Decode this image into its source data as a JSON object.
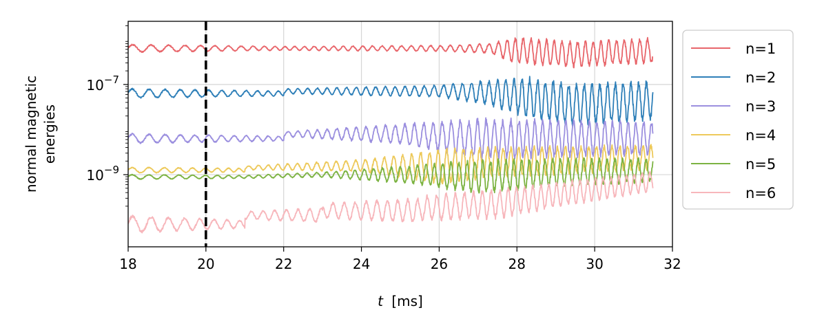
{
  "chart_data": {
    "type": "line",
    "title": "",
    "xlabel": "t",
    "xlabel_unit": "[ms]",
    "ylabel_line1": "normal magnetic",
    "ylabel_line2": "energies",
    "xlim": [
      18,
      32
    ],
    "ylim_log10": [
      -10.6,
      -5.6
    ],
    "yscale": "log",
    "grid": true,
    "x_ticks": [
      18,
      20,
      22,
      24,
      26,
      28,
      30,
      32
    ],
    "x_tick_labels": [
      "18",
      "20",
      "22",
      "24",
      "26",
      "28",
      "30",
      "32"
    ],
    "y_ticks_log10": [
      -9,
      -7
    ],
    "y_tick_labels": [
      {
        "base": "10",
        "exp": "−9"
      },
      {
        "base": "10",
        "exp": "−7"
      }
    ],
    "legend_position": "outside-right-top",
    "vline": {
      "x": 20,
      "style": "dashed",
      "color": "#000000"
    },
    "series": [
      {
        "name": "n=1",
        "color": "#e8656a",
        "segments": [
          [
            18,
            -6.2,
            -6.2,
            0.08,
            0.5
          ],
          [
            22,
            -6.2,
            -6.2,
            0.04,
            0.25
          ],
          [
            26,
            -6.2,
            -6.2,
            0.06,
            0.25
          ],
          [
            27.3,
            -6.2,
            -6.25,
            0.1,
            0.25
          ],
          [
            28,
            -6.25,
            -6.33,
            0.27,
            0.2
          ],
          [
            29.5,
            -6.33,
            -6.25,
            0.26,
            0.2
          ],
          [
            31.5,
            -6.25,
            -6.25,
            0.26,
            0.2
          ]
        ]
      },
      {
        "name": "n=2",
        "color": "#2e7fb8",
        "segments": [
          [
            18,
            -7.2,
            -7.2,
            0.1,
            0.45
          ],
          [
            22,
            -7.15,
            -7.15,
            0.05,
            0.25
          ],
          [
            26,
            -7.15,
            -7.18,
            0.12,
            0.25
          ],
          [
            27.3,
            -7.18,
            -7.3,
            0.25,
            0.22
          ],
          [
            28.3,
            -7.3,
            -7.45,
            0.42,
            0.2
          ],
          [
            29.5,
            -7.45,
            -7.35,
            0.42,
            0.2
          ],
          [
            31.5,
            -7.35,
            -7.35,
            0.4,
            0.2
          ]
        ]
      },
      {
        "name": "n=3",
        "color": "#9b8fdf",
        "segments": [
          [
            18,
            -8.2,
            -8.2,
            0.1,
            0.45
          ],
          [
            22,
            -8.1,
            -8.1,
            0.05,
            0.25
          ],
          [
            25,
            -8.1,
            -8.2,
            0.2,
            0.25
          ],
          [
            27,
            -8.2,
            -8.2,
            0.4,
            0.22
          ],
          [
            28.5,
            -8.2,
            -8.2,
            0.38,
            0.2
          ],
          [
            31.5,
            -8.2,
            -8.0,
            0.34,
            0.2
          ]
        ]
      },
      {
        "name": "n=4",
        "color": "#edc95a",
        "segments": [
          [
            18,
            -8.9,
            -8.9,
            0.06,
            0.45
          ],
          [
            21,
            -8.85,
            -8.8,
            0.04,
            0.25
          ],
          [
            24,
            -8.8,
            -8.82,
            0.12,
            0.25
          ],
          [
            26,
            -8.82,
            -8.72,
            0.35,
            0.22
          ],
          [
            27.5,
            -8.72,
            -8.62,
            0.3,
            0.2
          ],
          [
            31.5,
            -8.62,
            -8.55,
            0.25,
            0.2
          ]
        ]
      },
      {
        "name": "n=5",
        "color": "#7cb342",
        "segments": [
          [
            18,
            -9.05,
            -9.05,
            0.05,
            0.45
          ],
          [
            21,
            -9.05,
            -9.0,
            0.03,
            0.25
          ],
          [
            23,
            -9.0,
            -9.0,
            0.05,
            0.25
          ],
          [
            25.5,
            -9.0,
            -9.05,
            0.2,
            0.22
          ],
          [
            27,
            -9.05,
            -8.95,
            0.34,
            0.2
          ],
          [
            29,
            -8.95,
            -8.9,
            0.28,
            0.2
          ],
          [
            31.5,
            -8.9,
            -8.9,
            0.24,
            0.2
          ]
        ]
      },
      {
        "name": "n=6",
        "color": "#f7b6bb",
        "segments": [
          [
            18,
            -10.1,
            -10.1,
            0.18,
            0.5
          ],
          [
            21,
            -9.9,
            -9.9,
            0.08,
            0.3
          ],
          [
            23,
            -9.8,
            -9.8,
            0.15,
            0.3
          ],
          [
            25.5,
            -9.75,
            -9.65,
            0.25,
            0.25
          ],
          [
            27.5,
            -9.65,
            -9.45,
            0.3,
            0.22
          ],
          [
            29,
            -9.45,
            -9.15,
            0.25,
            0.2
          ],
          [
            31.5,
            -9.15,
            -9.05,
            0.2,
            0.2
          ]
        ]
      }
    ]
  }
}
